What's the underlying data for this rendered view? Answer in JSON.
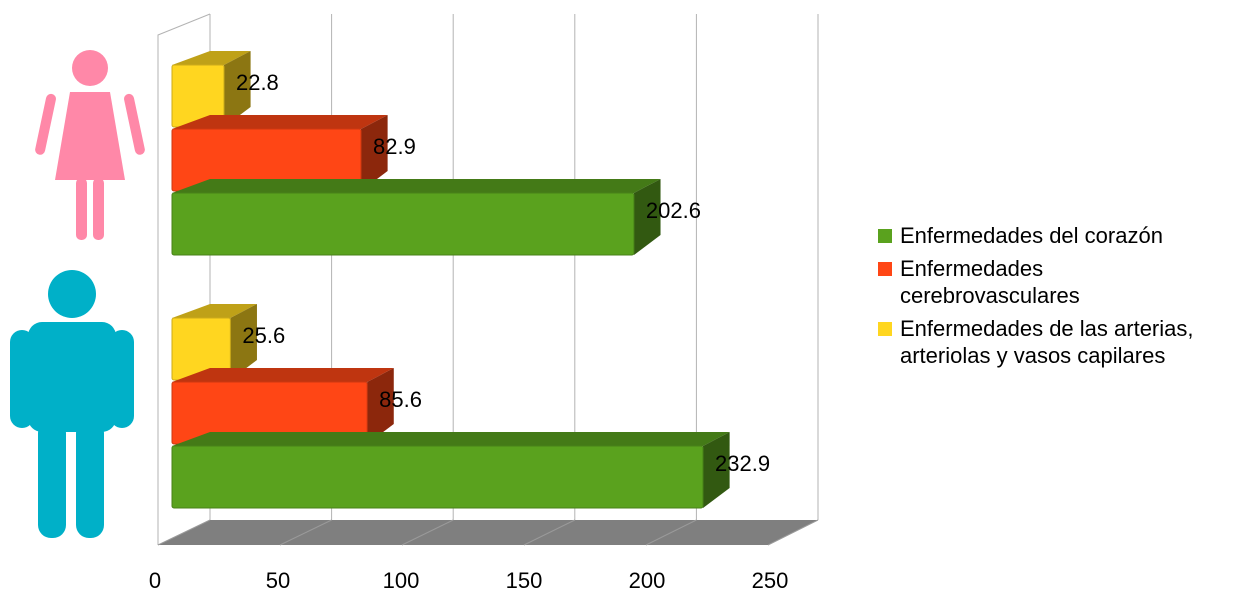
{
  "chart_data": {
    "type": "bar",
    "orientation": "horizontal",
    "three_d": true,
    "categories": [
      "Mujeres",
      "Hombres"
    ],
    "category_icons": [
      "female-figure-icon",
      "male-figure-icon"
    ],
    "series": [
      {
        "name": "Enfermedades del corazón",
        "color": "#5aa21e",
        "values": [
          202.6,
          232.9
        ],
        "labels": [
          "202.6",
          "232.9"
        ]
      },
      {
        "name": "Enfermedades cerebrovasculares",
        "color": "#ff4615",
        "values": [
          82.9,
          85.6
        ],
        "labels": [
          "82.9",
          "85.6"
        ]
      },
      {
        "name": "Enfermedades de las arterias, arteriolas y vasos capilares",
        "color": "#ffd620",
        "values": [
          22.8,
          25.6
        ],
        "labels": [
          "22.8",
          "25.6"
        ]
      }
    ],
    "xlim": [
      0,
      250
    ],
    "xticks": [
      "0",
      "50",
      "100",
      "150",
      "200",
      "250"
    ],
    "grid": true,
    "legend_position": "right",
    "icon_colors": {
      "female": "#ff88a8",
      "male": "#00b0c8"
    }
  }
}
